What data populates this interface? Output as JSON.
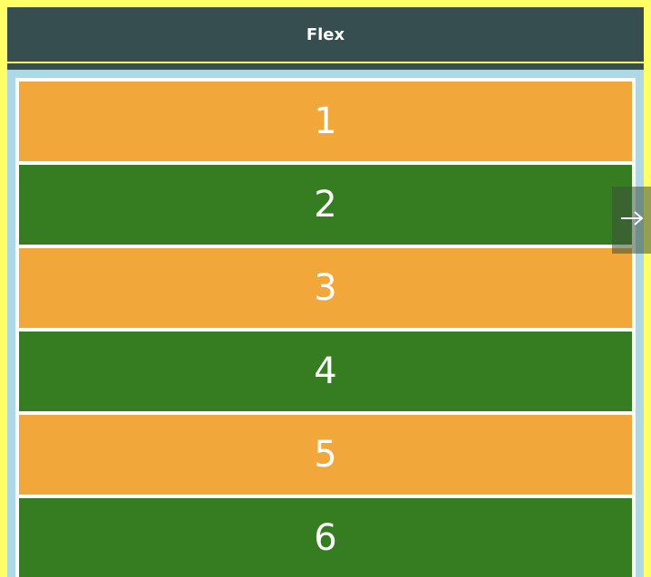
{
  "header": {
    "title": "Flex"
  },
  "items": [
    {
      "label": "1"
    },
    {
      "label": "2"
    },
    {
      "label": "3"
    },
    {
      "label": "4"
    },
    {
      "label": "5"
    },
    {
      "label": "6"
    }
  ],
  "colors": {
    "frame": "#ffff66",
    "header": "#364e4f",
    "container": "#add8e6",
    "item_odd": "#f2a73b",
    "item_even": "#367d22"
  },
  "next_button": {
    "icon": "arrow-right-icon"
  }
}
